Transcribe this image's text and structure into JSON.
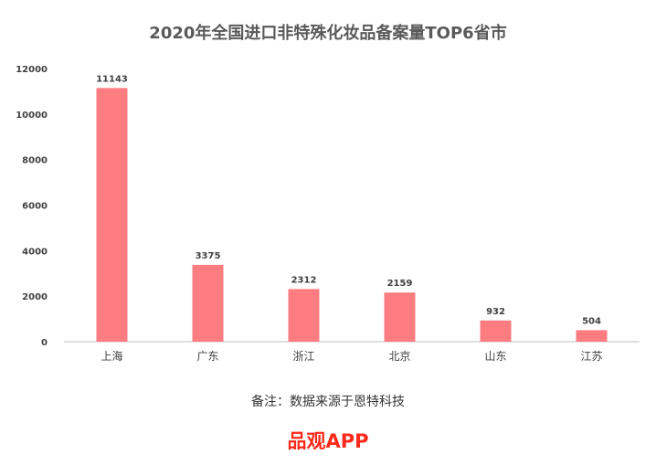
{
  "chart_data": {
    "type": "bar",
    "title": "2020年全国进口非特殊化妆品备案量TOP6省市",
    "categories": [
      "上海",
      "广东",
      "浙江",
      "北京",
      "山东",
      "江苏"
    ],
    "values": [
      11143,
      3375,
      2312,
      2159,
      932,
      504
    ],
    "data_labels": [
      "11143",
      "3375",
      "2312",
      "2159",
      "932",
      "504"
    ],
    "y_ticks": [
      "0",
      "2000",
      "4000",
      "6000",
      "8000",
      "10000",
      "12000"
    ],
    "ylim": [
      0,
      12000
    ],
    "xlabel": "",
    "ylabel": "",
    "grid": false,
    "legend": "none",
    "bar_color": "#ff7c80"
  },
  "note": "备注：数据来源于恩特科技",
  "brand": {
    "text": "品观APP",
    "color": "#ff2a1a"
  },
  "colors": {
    "title": "#595959",
    "axis": "#bfbfbf",
    "label": "#404040"
  }
}
